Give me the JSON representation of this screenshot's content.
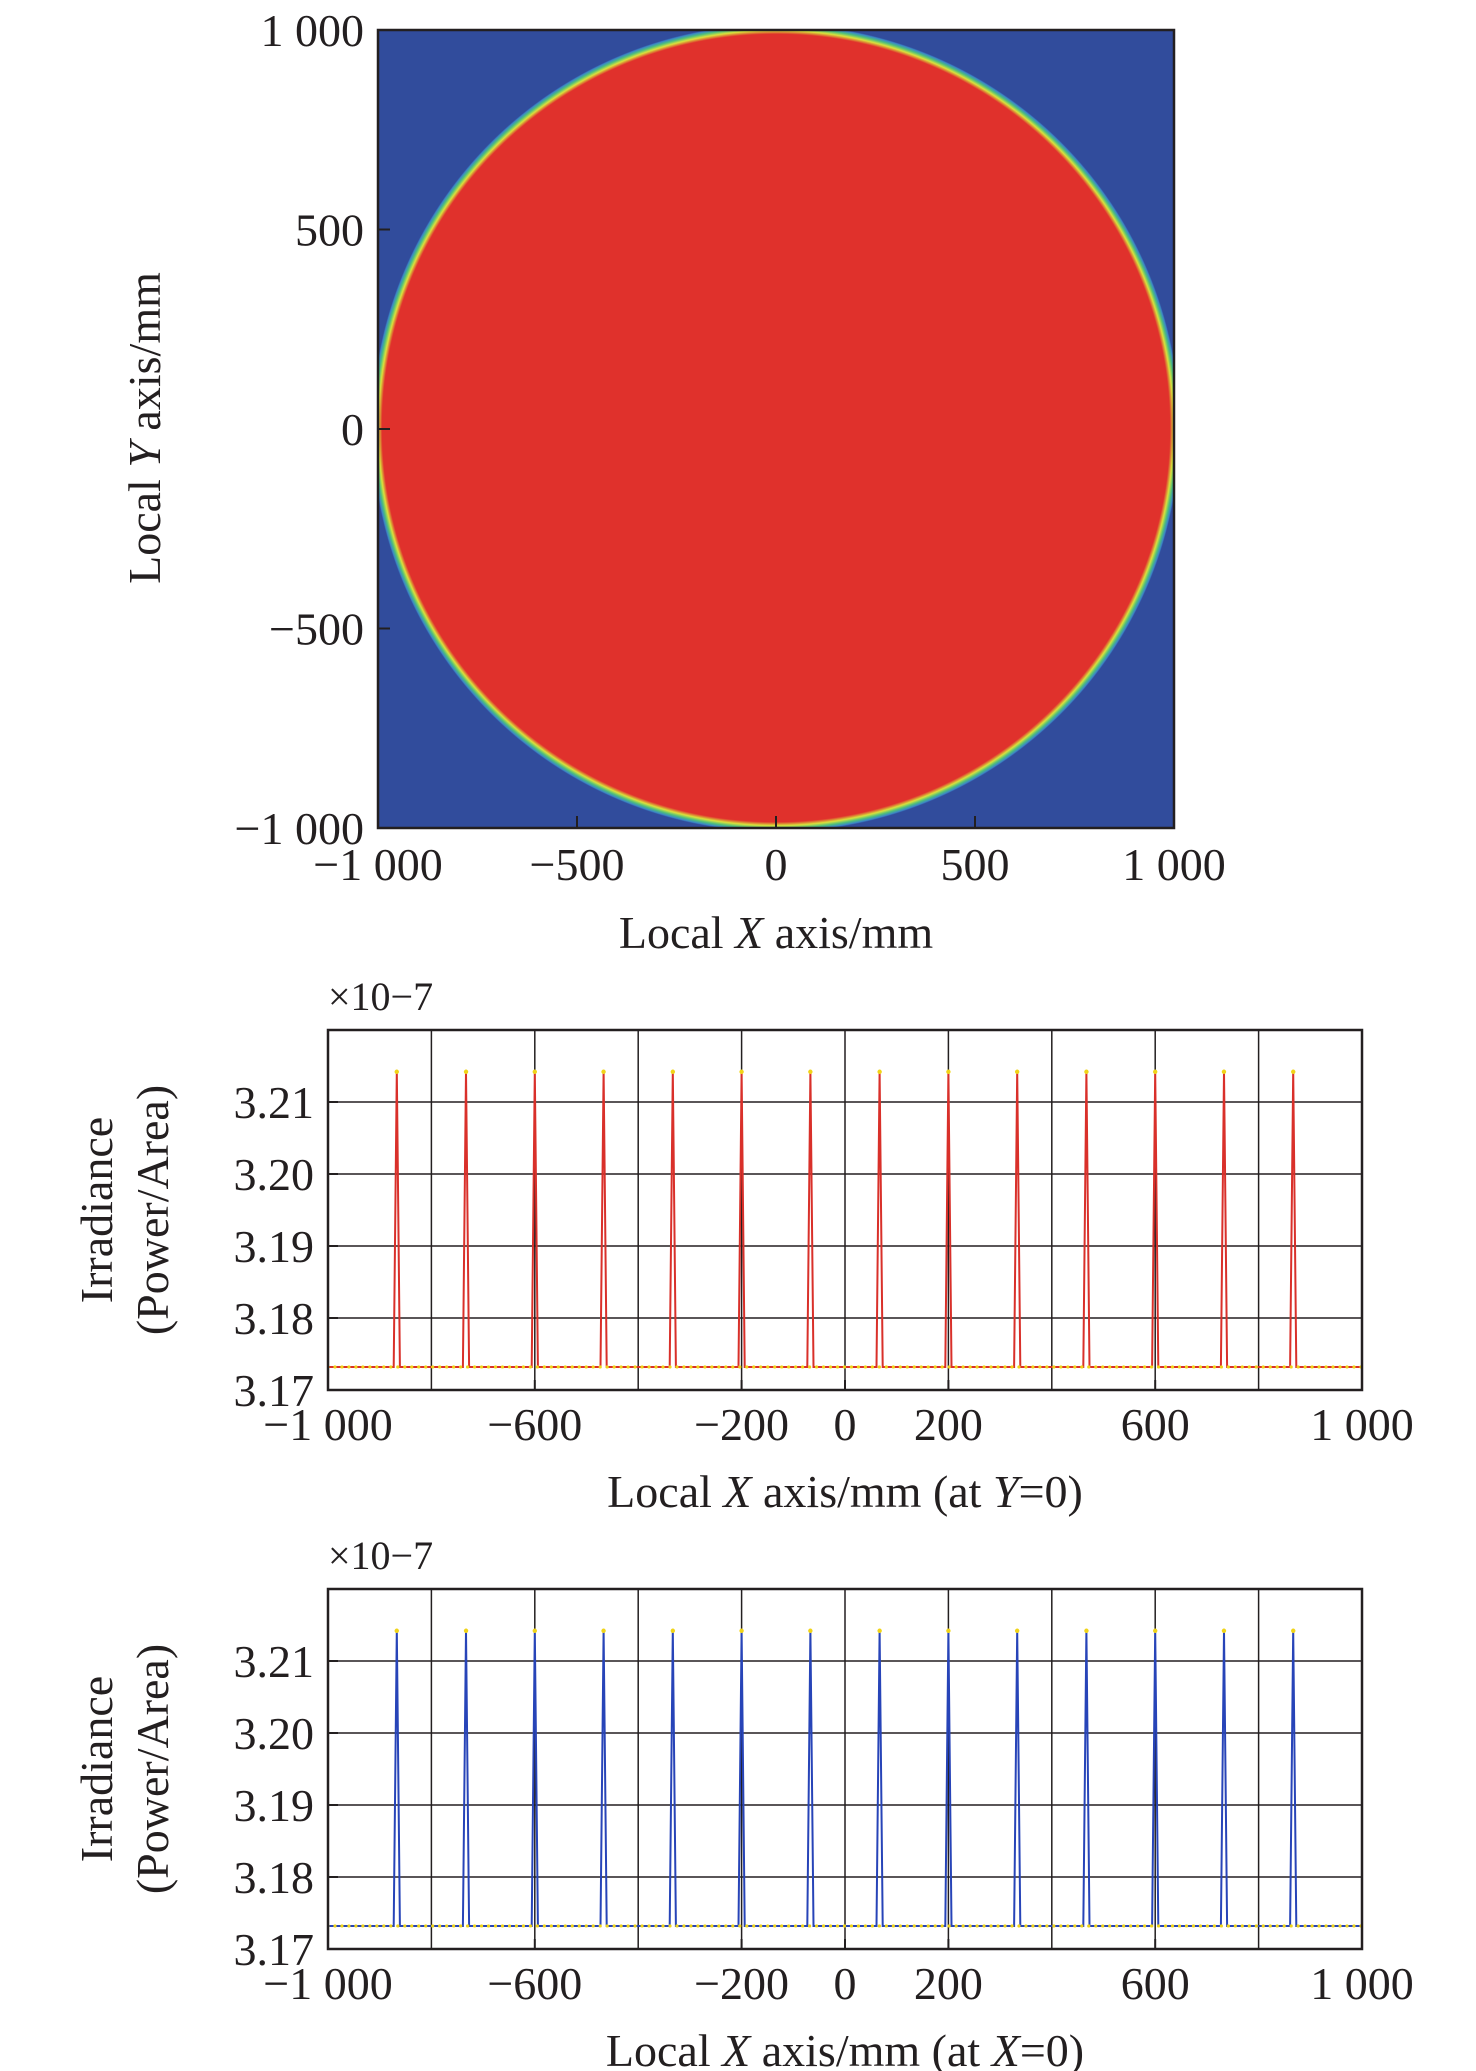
{
  "chart_data": [
    {
      "type": "heatmap",
      "xlabel_parts": [
        "Local ",
        "X",
        " axis/mm"
      ],
      "ylabel_parts": [
        "Local ",
        "Y",
        " axis/mm"
      ],
      "xlim": [
        -1000,
        1000
      ],
      "ylim": [
        -1000,
        1000
      ],
      "xticks": [
        -1000,
        -500,
        0,
        500,
        1000
      ],
      "yticks": [
        -1000,
        -500,
        0,
        500,
        1000
      ],
      "xtick_labels": [
        "−1 000",
        "−500",
        "0",
        "500",
        "1 000"
      ],
      "ytick_labels": [
        "−1 000",
        "−500",
        "0",
        "500",
        "1 000"
      ],
      "shape": "circle",
      "center": [
        0,
        0
      ],
      "radius_mm": 1000,
      "colors": {
        "background": "#314c9c",
        "inside": "#e0312c",
        "edge_ring": [
          "#d9e23b",
          "#4fc07a",
          "#3a86c8"
        ]
      }
    },
    {
      "type": "line",
      "multiplier": "×10−7",
      "xlabel_parts": [
        "Local ",
        "X",
        " axis/mm (at ",
        "Y",
        "=0)"
      ],
      "ylabel_line1": "Irradiance",
      "ylabel_line2": "(Power/Area)",
      "xlim": [
        -1000,
        1000
      ],
      "ylim": [
        3.17,
        3.22
      ],
      "xtick_labels": [
        "−1 000",
        "−600",
        "−200",
        "0",
        "200",
        "600",
        "1 000"
      ],
      "xticks": [
        -1000,
        -600,
        -200,
        0,
        200,
        600,
        1000
      ],
      "yticks": [
        3.17,
        3.18,
        3.19,
        3.2,
        3.21
      ],
      "ytick_labels": [
        "3.17",
        "3.18",
        "3.19",
        "3.20",
        "3.21"
      ],
      "vgrid": [
        -800,
        -600,
        -400,
        -200,
        0,
        200,
        400,
        600,
        800
      ],
      "hgrid": [
        3.18,
        3.19,
        3.2,
        3.21
      ],
      "grid": true,
      "series_color": "#d9302a",
      "marker_color": "#f0d418",
      "baseline": 3.1732,
      "peak": 3.2142,
      "peaks_x": [
        -867,
        -733,
        -600,
        -467,
        -333,
        -200,
        -67,
        67,
        200,
        333,
        467,
        600,
        733,
        867
      ]
    },
    {
      "type": "line",
      "multiplier": "×10−7",
      "xlabel_parts": [
        "Local ",
        "X",
        " axis/mm (at ",
        "X",
        "=0)"
      ],
      "ylabel_line1": "Irradiance",
      "ylabel_line2": "(Power/Area)",
      "xlim": [
        -1000,
        1000
      ],
      "ylim": [
        3.17,
        3.22
      ],
      "xtick_labels": [
        "−1 000",
        "−600",
        "−200",
        "0",
        "200",
        "600",
        "1 000"
      ],
      "xticks": [
        -1000,
        -600,
        -200,
        0,
        200,
        600,
        1000
      ],
      "yticks": [
        3.17,
        3.18,
        3.19,
        3.2,
        3.21
      ],
      "ytick_labels": [
        "3.17",
        "3.18",
        "3.19",
        "3.20",
        "3.21"
      ],
      "vgrid": [
        -800,
        -600,
        -400,
        -200,
        0,
        200,
        400,
        600,
        800
      ],
      "hgrid": [
        3.18,
        3.19,
        3.2,
        3.21
      ],
      "grid": true,
      "series_color": "#2744b8",
      "marker_color": "#f0d418",
      "baseline": 3.1732,
      "peak": 3.2142,
      "peaks_x": [
        -867,
        -733,
        -600,
        -467,
        -333,
        -200,
        -67,
        67,
        200,
        333,
        467,
        600,
        733,
        867
      ]
    }
  ]
}
